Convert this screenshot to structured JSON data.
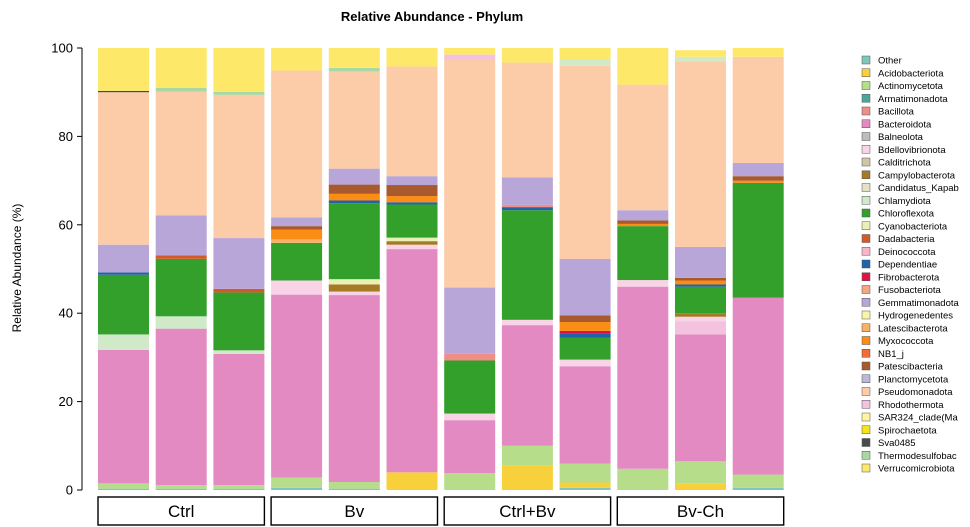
{
  "chart_data": {
    "type": "bar",
    "stacked": true,
    "title": "Relative Abundance - Phylum",
    "ylabel": "Relative Abundance (%)",
    "xlabel": "",
    "ylim": [
      0,
      100
    ],
    "yticks": [
      0,
      20,
      40,
      60,
      80,
      100
    ],
    "grid": false,
    "legend_position": "right",
    "groups": [
      {
        "label": "Ctrl",
        "bars": [
          0,
          1,
          2
        ]
      },
      {
        "label": "Bv",
        "bars": [
          3,
          4,
          5
        ]
      },
      {
        "label": "Ctrl+Bv",
        "bars": [
          6,
          7,
          8
        ]
      },
      {
        "label": "Bv-Ch",
        "bars": [
          9,
          10,
          11
        ]
      }
    ],
    "phyla": [
      {
        "name": "Other",
        "color": "#7fc6bc"
      },
      {
        "name": "Acidobacteriota",
        "color": "#f7d03c"
      },
      {
        "name": "Actinomycetota",
        "color": "#b5dd8a"
      },
      {
        "name": "Armatimonadota",
        "color": "#4aa89a"
      },
      {
        "name": "Bacillota",
        "color": "#f08d86"
      },
      {
        "name": "Bacteroidota",
        "color": "#e48ac3"
      },
      {
        "name": "Balneolota",
        "color": "#bdbdbd"
      },
      {
        "name": "Bdellovibrionota",
        "color": "#f8d4e6"
      },
      {
        "name": "Calditrichota",
        "color": "#cfc6a8"
      },
      {
        "name": "Campylobacterota",
        "color": "#a47a24"
      },
      {
        "name": "Candidatus_Kapab",
        "color": "#e6e0c8"
      },
      {
        "name": "Chlamydiota",
        "color": "#cfe9c9"
      },
      {
        "name": "Chloroflexota",
        "color": "#33a02c"
      },
      {
        "name": "Cyanobacteriota",
        "color": "#e9f0b7"
      },
      {
        "name": "Dadabacteria",
        "color": "#d15a28"
      },
      {
        "name": "Deinococcota",
        "color": "#f6b6c8"
      },
      {
        "name": "Dependentiae",
        "color": "#1f63a8"
      },
      {
        "name": "Fibrobacterota",
        "color": "#e0104a"
      },
      {
        "name": "Fusobacteriota",
        "color": "#f4a582"
      },
      {
        "name": "Gemmatimonadota",
        "color": "#b9a6d8"
      },
      {
        "name": "Hydrogenedentes",
        "color": "#f9f4a8"
      },
      {
        "name": "Latescibacterota",
        "color": "#f6b266"
      },
      {
        "name": "Myxococcota",
        "color": "#fb8c14"
      },
      {
        "name": "NB1_j",
        "color": "#f26b38"
      },
      {
        "name": "Patescibacteria",
        "color": "#a85a2e"
      },
      {
        "name": "Planctomycetota",
        "color": "#bcb8dc"
      },
      {
        "name": "Pseudomonadota",
        "color": "#fccba8"
      },
      {
        "name": "Rhodothermota",
        "color": "#f3c2de"
      },
      {
        "name": "SAR324_clade(Ma",
        "color": "#fff5a0"
      },
      {
        "name": "Spirochaetota",
        "color": "#f7e31a"
      },
      {
        "name": "Sva0485",
        "color": "#4a4a4a"
      },
      {
        "name": "Thermodesulfobac",
        "color": "#a9d8a2"
      },
      {
        "name": "Verrucomicrobiota",
        "color": "#fde86a"
      }
    ],
    "samples": [
      {
        "group": "Ctrl",
        "segments": [
          {
            "phylum": "Other",
            "value": 0.3
          },
          {
            "phylum": "Actinomycetota",
            "value": 1.2
          },
          {
            "phylum": "Bacteroidota",
            "value": 30.2
          },
          {
            "phylum": "Chlamydiota",
            "value": 3.5
          },
          {
            "phylum": "Chloroflexota",
            "value": 13.5
          },
          {
            "phylum": "Dependentiae",
            "value": 0.5
          },
          {
            "phylum": "Gemmatimonadota",
            "value": 6.3
          },
          {
            "phylum": "Pseudomonadota",
            "value": 34.5
          },
          {
            "phylum": "Sva0485",
            "value": 0.3
          },
          {
            "phylum": "Verrucomicrobiota",
            "value": 9.7
          }
        ]
      },
      {
        "group": "Ctrl",
        "segments": [
          {
            "phylum": "Other",
            "value": 0.3
          },
          {
            "phylum": "Actinomycetota",
            "value": 0.8
          },
          {
            "phylum": "Bacteroidota",
            "value": 35.4
          },
          {
            "phylum": "Chlamydiota",
            "value": 2.8
          },
          {
            "phylum": "Chloroflexota",
            "value": 13.0
          },
          {
            "phylum": "Dadabacteria",
            "value": 0.8
          },
          {
            "phylum": "Gemmatimonadota",
            "value": 9.0
          },
          {
            "phylum": "Pseudomonadota",
            "value": 28.0
          },
          {
            "phylum": "Thermodesulfobac",
            "value": 0.9
          },
          {
            "phylum": "Verrucomicrobiota",
            "value": 9.0
          }
        ]
      },
      {
        "group": "Ctrl",
        "segments": [
          {
            "phylum": "Other",
            "value": 0.3
          },
          {
            "phylum": "Actinomycetota",
            "value": 0.8
          },
          {
            "phylum": "Bacteroidota",
            "value": 29.7
          },
          {
            "phylum": "Chlamydiota",
            "value": 0.8
          },
          {
            "phylum": "Chloroflexota",
            "value": 13.1
          },
          {
            "phylum": "Dadabacteria",
            "value": 0.8
          },
          {
            "phylum": "Gemmatimonadota",
            "value": 11.5
          },
          {
            "phylum": "Pseudomonadota",
            "value": 32.4
          },
          {
            "phylum": "Thermodesulfobac",
            "value": 0.7
          },
          {
            "phylum": "Verrucomicrobiota",
            "value": 9.9
          }
        ]
      },
      {
        "group": "Bv",
        "segments": [
          {
            "phylum": "Other",
            "value": 0.5
          },
          {
            "phylum": "Actinomycetota",
            "value": 2.3
          },
          {
            "phylum": "Bacteroidota",
            "value": 41.4
          },
          {
            "phylum": "Bdellovibrionota",
            "value": 3.2
          },
          {
            "phylum": "Chloroflexota",
            "value": 8.5
          },
          {
            "phylum": "Latescibacterota",
            "value": 0.8
          },
          {
            "phylum": "Myxococcota",
            "value": 2.2
          },
          {
            "phylum": "Patescibacteria",
            "value": 0.8
          },
          {
            "phylum": "Gemmatimonadota",
            "value": 2.0
          },
          {
            "phylum": "Pseudomonadota",
            "value": 33.2
          },
          {
            "phylum": "Verrucomicrobiota",
            "value": 5.1
          }
        ]
      },
      {
        "group": "Bv",
        "segments": [
          {
            "phylum": "Other",
            "value": 0.3
          },
          {
            "phylum": "Actinomycetota",
            "value": 1.5
          },
          {
            "phylum": "Bacteroidota",
            "value": 42.3
          },
          {
            "phylum": "Bdellovibrionota",
            "value": 0.8
          },
          {
            "phylum": "Campylobacterota",
            "value": 1.6
          },
          {
            "phylum": "Cyanobacteriota",
            "value": 1.2
          },
          {
            "phylum": "Chloroflexota",
            "value": 17.2
          },
          {
            "phylum": "Dependentiae",
            "value": 0.6
          },
          {
            "phylum": "Myxococcota",
            "value": 1.5
          },
          {
            "phylum": "Patescibacteria",
            "value": 2.1
          },
          {
            "phylum": "Gemmatimonadota",
            "value": 3.6
          },
          {
            "phylum": "Pseudomonadota",
            "value": 22.0
          },
          {
            "phylum": "Thermodesulfobac",
            "value": 0.8
          },
          {
            "phylum": "Verrucomicrobiota",
            "value": 4.5
          }
        ]
      },
      {
        "group": "Bv",
        "segments": [
          {
            "phylum": "Acidobacteriota",
            "value": 4.0
          },
          {
            "phylum": "Bacteroidota",
            "value": 50.5
          },
          {
            "phylum": "Bdellovibrionota",
            "value": 1.0
          },
          {
            "phylum": "Campylobacterota",
            "value": 0.8
          },
          {
            "phylum": "Cyanobacteriota",
            "value": 0.8
          },
          {
            "phylum": "Chloroflexota",
            "value": 7.5
          },
          {
            "phylum": "Dependentiae",
            "value": 0.5
          },
          {
            "phylum": "Myxococcota",
            "value": 1.4
          },
          {
            "phylum": "Patescibacteria",
            "value": 2.5
          },
          {
            "phylum": "Gemmatimonadota",
            "value": 2.0
          },
          {
            "phylum": "Pseudomonadota",
            "value": 24.8
          },
          {
            "phylum": "Verrucomicrobiota",
            "value": 4.2
          }
        ]
      },
      {
        "group": "Ctrl+Bv",
        "segments": [
          {
            "phylum": "Actinomycetota",
            "value": 3.8
          },
          {
            "phylum": "Bacteroidota",
            "value": 12.0
          },
          {
            "phylum": "Bdellovibrionota",
            "value": 1.5
          },
          {
            "phylum": "Chloroflexota",
            "value": 12.0
          },
          {
            "phylum": "Bacillota",
            "value": 1.5
          },
          {
            "phylum": "Gemmatimonadota",
            "value": 15.0
          },
          {
            "phylum": "Pseudomonadota",
            "value": 51.5
          },
          {
            "phylum": "Rhodothermota",
            "value": 1.2
          },
          {
            "phylum": "Verrucomicrobiota",
            "value": 1.5
          }
        ]
      },
      {
        "group": "Ctrl+Bv",
        "segments": [
          {
            "phylum": "Acidobacteriota",
            "value": 5.5
          },
          {
            "phylum": "Actinomycetota",
            "value": 4.5
          },
          {
            "phylum": "Bacteroidota",
            "value": 27.3
          },
          {
            "phylum": "Bdellovibrionota",
            "value": 1.2
          },
          {
            "phylum": "Chloroflexota",
            "value": 24.8
          },
          {
            "phylum": "Dependentiae",
            "value": 0.7
          },
          {
            "phylum": "Bacillota",
            "value": 0.5
          },
          {
            "phylum": "Gemmatimonadota",
            "value": 6.2
          },
          {
            "phylum": "Pseudomonadota",
            "value": 26.0
          },
          {
            "phylum": "Verrucomicrobiota",
            "value": 3.3
          }
        ]
      },
      {
        "group": "Ctrl+Bv",
        "segments": [
          {
            "phylum": "Other",
            "value": 0.5
          },
          {
            "phylum": "Acidobacteriota",
            "value": 1.2
          },
          {
            "phylum": "Actinomycetota",
            "value": 4.3
          },
          {
            "phylum": "Bacteroidota",
            "value": 22.0
          },
          {
            "phylum": "Bdellovibrionota",
            "value": 1.5
          },
          {
            "phylum": "Chloroflexota",
            "value": 5.0
          },
          {
            "phylum": "Dependentiae",
            "value": 1.0
          },
          {
            "phylum": "Fibrobacterota",
            "value": 0.5
          },
          {
            "phylum": "Myxococcota",
            "value": 2.0
          },
          {
            "phylum": "Patescibacteria",
            "value": 1.5
          },
          {
            "phylum": "Gemmatimonadota",
            "value": 12.8
          },
          {
            "phylum": "Pseudomonadota",
            "value": 43.7
          },
          {
            "phylum": "Chlamydiota",
            "value": 1.5
          },
          {
            "phylum": "Verrucomicrobiota",
            "value": 2.5
          }
        ]
      },
      {
        "group": "Bv-Ch",
        "segments": [
          {
            "phylum": "Actinomycetota",
            "value": 4.8
          },
          {
            "phylum": "Bacteroidota",
            "value": 41.2
          },
          {
            "phylum": "Bdellovibrionota",
            "value": 1.5
          },
          {
            "phylum": "Chloroflexota",
            "value": 12.2
          },
          {
            "phylum": "Myxococcota",
            "value": 0.5
          },
          {
            "phylum": "Patescibacteria",
            "value": 0.8
          },
          {
            "phylum": "Gemmatimonadota",
            "value": 2.3
          },
          {
            "phylum": "Pseudomonadota",
            "value": 28.4
          },
          {
            "phylum": "Verrucomicrobiota",
            "value": 8.3
          }
        ]
      },
      {
        "group": "Bv-Ch",
        "segments": [
          {
            "phylum": "Acidobacteriota",
            "value": 1.5
          },
          {
            "phylum": "Actinomycetota",
            "value": 5.0
          },
          {
            "phylum": "Bacteroidota",
            "value": 28.7
          },
          {
            "phylum": "Rhodothermota",
            "value": 3.0
          },
          {
            "phylum": "Bdellovibrionota",
            "value": 1.0
          },
          {
            "phylum": "Campylobacterota",
            "value": 0.8
          },
          {
            "phylum": "Chloroflexota",
            "value": 6.0
          },
          {
            "phylum": "Dependentiae",
            "value": 0.5
          },
          {
            "phylum": "Myxococcota",
            "value": 0.9
          },
          {
            "phylum": "Patescibacteria",
            "value": 0.6
          },
          {
            "phylum": "Gemmatimonadota",
            "value": 7.0
          },
          {
            "phylum": "Pseudomonadota",
            "value": 42.0
          },
          {
            "phylum": "Chlamydiota",
            "value": 1.0
          },
          {
            "phylum": "Verrucomicrobiota",
            "value": 1.5
          }
        ]
      },
      {
        "group": "Bv-Ch",
        "segments": [
          {
            "phylum": "Other",
            "value": 0.5
          },
          {
            "phylum": "Actinomycetota",
            "value": 3.0
          },
          {
            "phylum": "Bacteroidota",
            "value": 40.0
          },
          {
            "phylum": "Chloroflexota",
            "value": 26.0
          },
          {
            "phylum": "Myxococcota",
            "value": 0.5
          },
          {
            "phylum": "Patescibacteria",
            "value": 1.0
          },
          {
            "phylum": "Gemmatimonadota",
            "value": 3.0
          },
          {
            "phylum": "Pseudomonadota",
            "value": 24.0
          },
          {
            "phylum": "Verrucomicrobiota",
            "value": 2.0
          }
        ]
      }
    ]
  }
}
